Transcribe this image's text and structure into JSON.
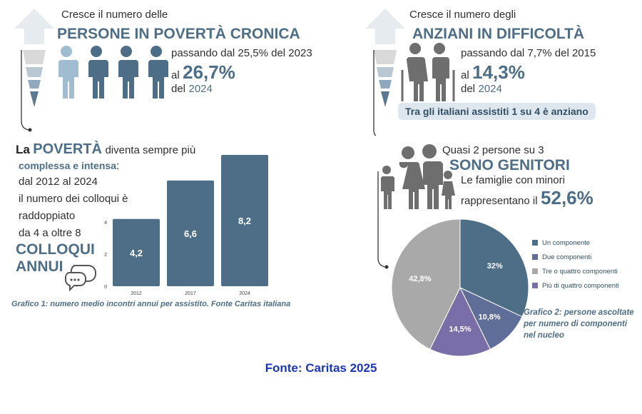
{
  "top_left": {
    "intro": "Cresce il numero delle",
    "headline": "PERSONE IN POVERTÀ CRONICA",
    "line1": "passando dal 25,5% del 2023",
    "al": "al",
    "value": "26,7%",
    "del": "del",
    "year": "2024"
  },
  "top_right": {
    "intro": "Cresce il numero degli",
    "headline": "ANZIANI IN DIFFICOLTÀ",
    "line1": "passando dal 7,7% del 2015",
    "al": "al",
    "value": "14,3%",
    "del": "del",
    "year": "2024",
    "pill": "Tra gli italiani assistiti 1 su 4 è anziano"
  },
  "middle_left": {
    "la": "La",
    "poverta": "POVERTÀ",
    "rest1": "diventa sempre più",
    "complex": "complessa e intensa",
    "colon": ":",
    "line2": "dal 2012 al 2024",
    "line3": "il numero dei colloqui è",
    "line4": "raddoppiato",
    "line5": "da 4 a oltre 8",
    "big1": "COLLOQUI",
    "big2": "ANNUI"
  },
  "middle_right": {
    "line1": "Quasi 2 persone su 3",
    "headline": "SONO GENITORI",
    "line2": "Le famiglie con minori",
    "line3": "rappresentano il",
    "value": "52,6%"
  },
  "chart_data": [
    {
      "type": "bar",
      "categories": [
        "2012",
        "2017",
        "2024"
      ],
      "values": [
        4.2,
        6.6,
        8.2
      ],
      "value_labels": [
        "4,2",
        "6,6",
        "8,2"
      ],
      "yticks": [
        0,
        2,
        4
      ],
      "ylim": [
        0,
        8.2
      ],
      "color": "#4d6e86",
      "caption": "Grafico 1: numero medio incontri annui per assistito. Fonte Caritas italiana"
    },
    {
      "type": "pie",
      "labels": [
        "Un componente",
        "Due componenti",
        "Tre o quattro componenti",
        "Più di quattro componenti"
      ],
      "values": [
        32,
        10.8,
        42.8,
        14.5
      ],
      "value_labels": [
        "32%",
        "10,8%",
        "42,8%",
        "14,5%"
      ],
      "colors": [
        "#4d6e86",
        "#5e6e98",
        "#a9a9a9",
        "#7a6ea8"
      ],
      "draw_order": [
        0,
        1,
        3,
        2
      ],
      "legend_placement": "right",
      "caption": [
        "Grafico 2: persone ascoltate",
        "per numero di componenti",
        "nel nucleo"
      ]
    }
  ],
  "footer": "Fonte: Caritas 2025"
}
